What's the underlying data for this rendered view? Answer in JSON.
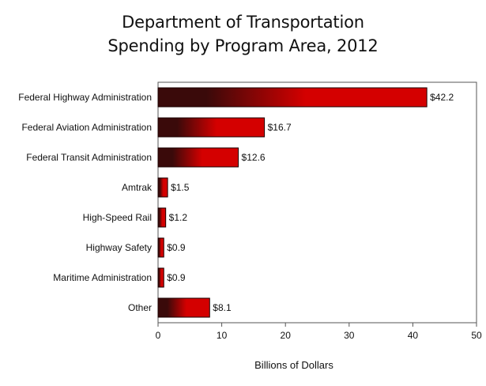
{
  "chart_data": {
    "type": "bar",
    "orientation": "horizontal",
    "title": [
      "Department of Transportation",
      "Spending by Program Area, 2012"
    ],
    "categories": [
      "Federal Highway Administration",
      "Federal Aviation Administration",
      "Federal Transit Administration",
      "Amtrak",
      "High-Speed Rail",
      "Highway Safety",
      "Maritime Administration",
      "Other"
    ],
    "values": [
      42.2,
      16.7,
      12.6,
      1.5,
      1.2,
      0.9,
      0.9,
      8.1
    ],
    "value_labels": [
      "$42.2",
      "$16.7",
      "$12.6",
      "$1.5",
      "$1.2",
      "$0.9",
      "$0.9",
      "$8.1"
    ],
    "xlabel": "Billions of Dollars",
    "ylabel": "",
    "xlim": [
      0,
      50
    ],
    "xticks": [
      0,
      10,
      20,
      30,
      40,
      50
    ],
    "grid": false,
    "legend": "none",
    "colors": {
      "bar_dark": "#3a0a0a",
      "bar_light": "#d40000",
      "bar_outline": "#1a0000"
    }
  }
}
